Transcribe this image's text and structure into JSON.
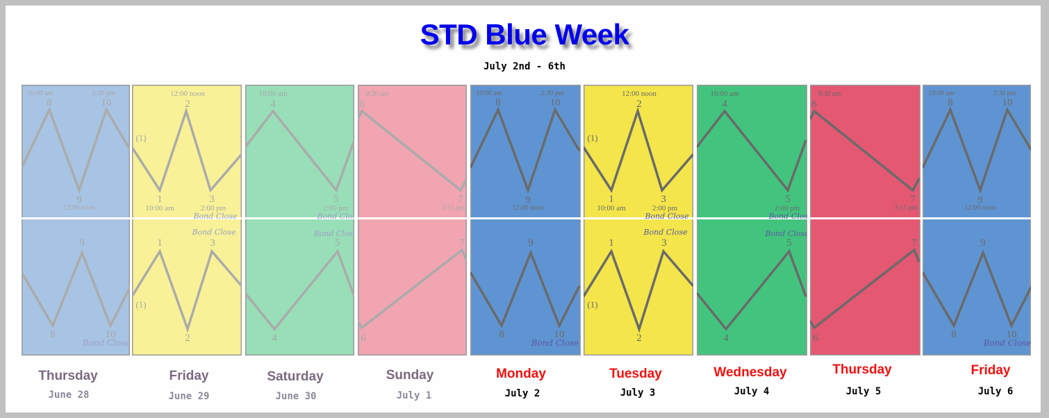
{
  "header": {
    "title": "STD Blue Week",
    "subtitle": "July 2nd - 6th"
  },
  "colors": {
    "title": "#0000ee",
    "past_day": "#7a6a80",
    "past_date": "#8a8a9a",
    "current_day": "#ee1111",
    "current_date": "#000000"
  },
  "days": [
    {
      "day": "Thursday",
      "date": "June 28",
      "pattern": "blue",
      "faded": true,
      "color": "#a8c4e4",
      "top_labels": [
        "10:00 am",
        "8",
        "2:30 pm",
        "10",
        "9",
        "12:00 noon"
      ],
      "bottom_labels": [
        "9",
        "8",
        "10",
        "Bond Close"
      ]
    },
    {
      "day": "Friday",
      "date": "June 29",
      "pattern": "yellow",
      "faded": true,
      "color": "#f8f197",
      "top_labels": [
        "12:00 noon",
        "2",
        "(1)",
        "1",
        "10:00 am",
        "3",
        "2:00 pm",
        "Bond Close"
      ],
      "bottom_labels": [
        "Bond Close",
        "1",
        "3",
        "(1)",
        "2"
      ]
    },
    {
      "day": "Saturday",
      "date": "June 30",
      "pattern": "green",
      "faded": true,
      "color": "#98dfb8",
      "top_labels": [
        "10:00 am",
        "4",
        "5",
        "2:00 pm",
        "Bond Close"
      ],
      "bottom_labels": [
        "Bond Close",
        "5",
        "4"
      ]
    },
    {
      "day": "Sunday",
      "date": "July 1",
      "pattern": "pink",
      "faded": true,
      "color": "#f0a5b0",
      "top_labels": [
        "8:30 am",
        "6",
        "7",
        "3:15 pm"
      ],
      "bottom_labels": [
        "7",
        "6"
      ]
    },
    {
      "day": "Monday",
      "date": "July 2",
      "pattern": "blue",
      "faded": false,
      "color": "#5f94d2",
      "top_labels": [
        "10:00 am",
        "8",
        "2:30 pm",
        "10",
        "9",
        "12:00 noon"
      ],
      "bottom_labels": [
        "9",
        "8",
        "10",
        "Bond Close"
      ]
    },
    {
      "day": "Tuesday",
      "date": "July 3",
      "pattern": "yellow",
      "faded": false,
      "color": "#f3e54a",
      "top_labels": [
        "12:00 noon",
        "2",
        "(1)",
        "1",
        "10:00 am",
        "3",
        "2:00 pm",
        "Bond Close"
      ],
      "bottom_labels": [
        "Bond Close",
        "1",
        "3",
        "(1)",
        "2"
      ]
    },
    {
      "day": "Wednesday",
      "date": "July 4",
      "pattern": "green",
      "faded": false,
      "color": "#43c47e",
      "top_labels": [
        "10:00 am",
        "4",
        "5",
        "2:00 pm",
        "Bond Close"
      ],
      "bottom_labels": [
        "Bond Close",
        "5",
        "4"
      ]
    },
    {
      "day": "Thursday",
      "date": "July 5",
      "pattern": "pink",
      "faded": false,
      "color": "#e45872",
      "top_labels": [
        "8:30 am",
        "6",
        "7",
        "3:15 pm"
      ],
      "bottom_labels": [
        "7",
        "6"
      ]
    },
    {
      "day": "Friday",
      "date": "July 6",
      "pattern": "blue",
      "faded": false,
      "color": "#5f94d2",
      "top_labels": [
        "10:00 am",
        "8",
        "2:30 pm",
        "10",
        "9",
        "12:00 noon"
      ],
      "bottom_labels": [
        "9",
        "8",
        "10",
        "Bond Close"
      ]
    }
  ]
}
